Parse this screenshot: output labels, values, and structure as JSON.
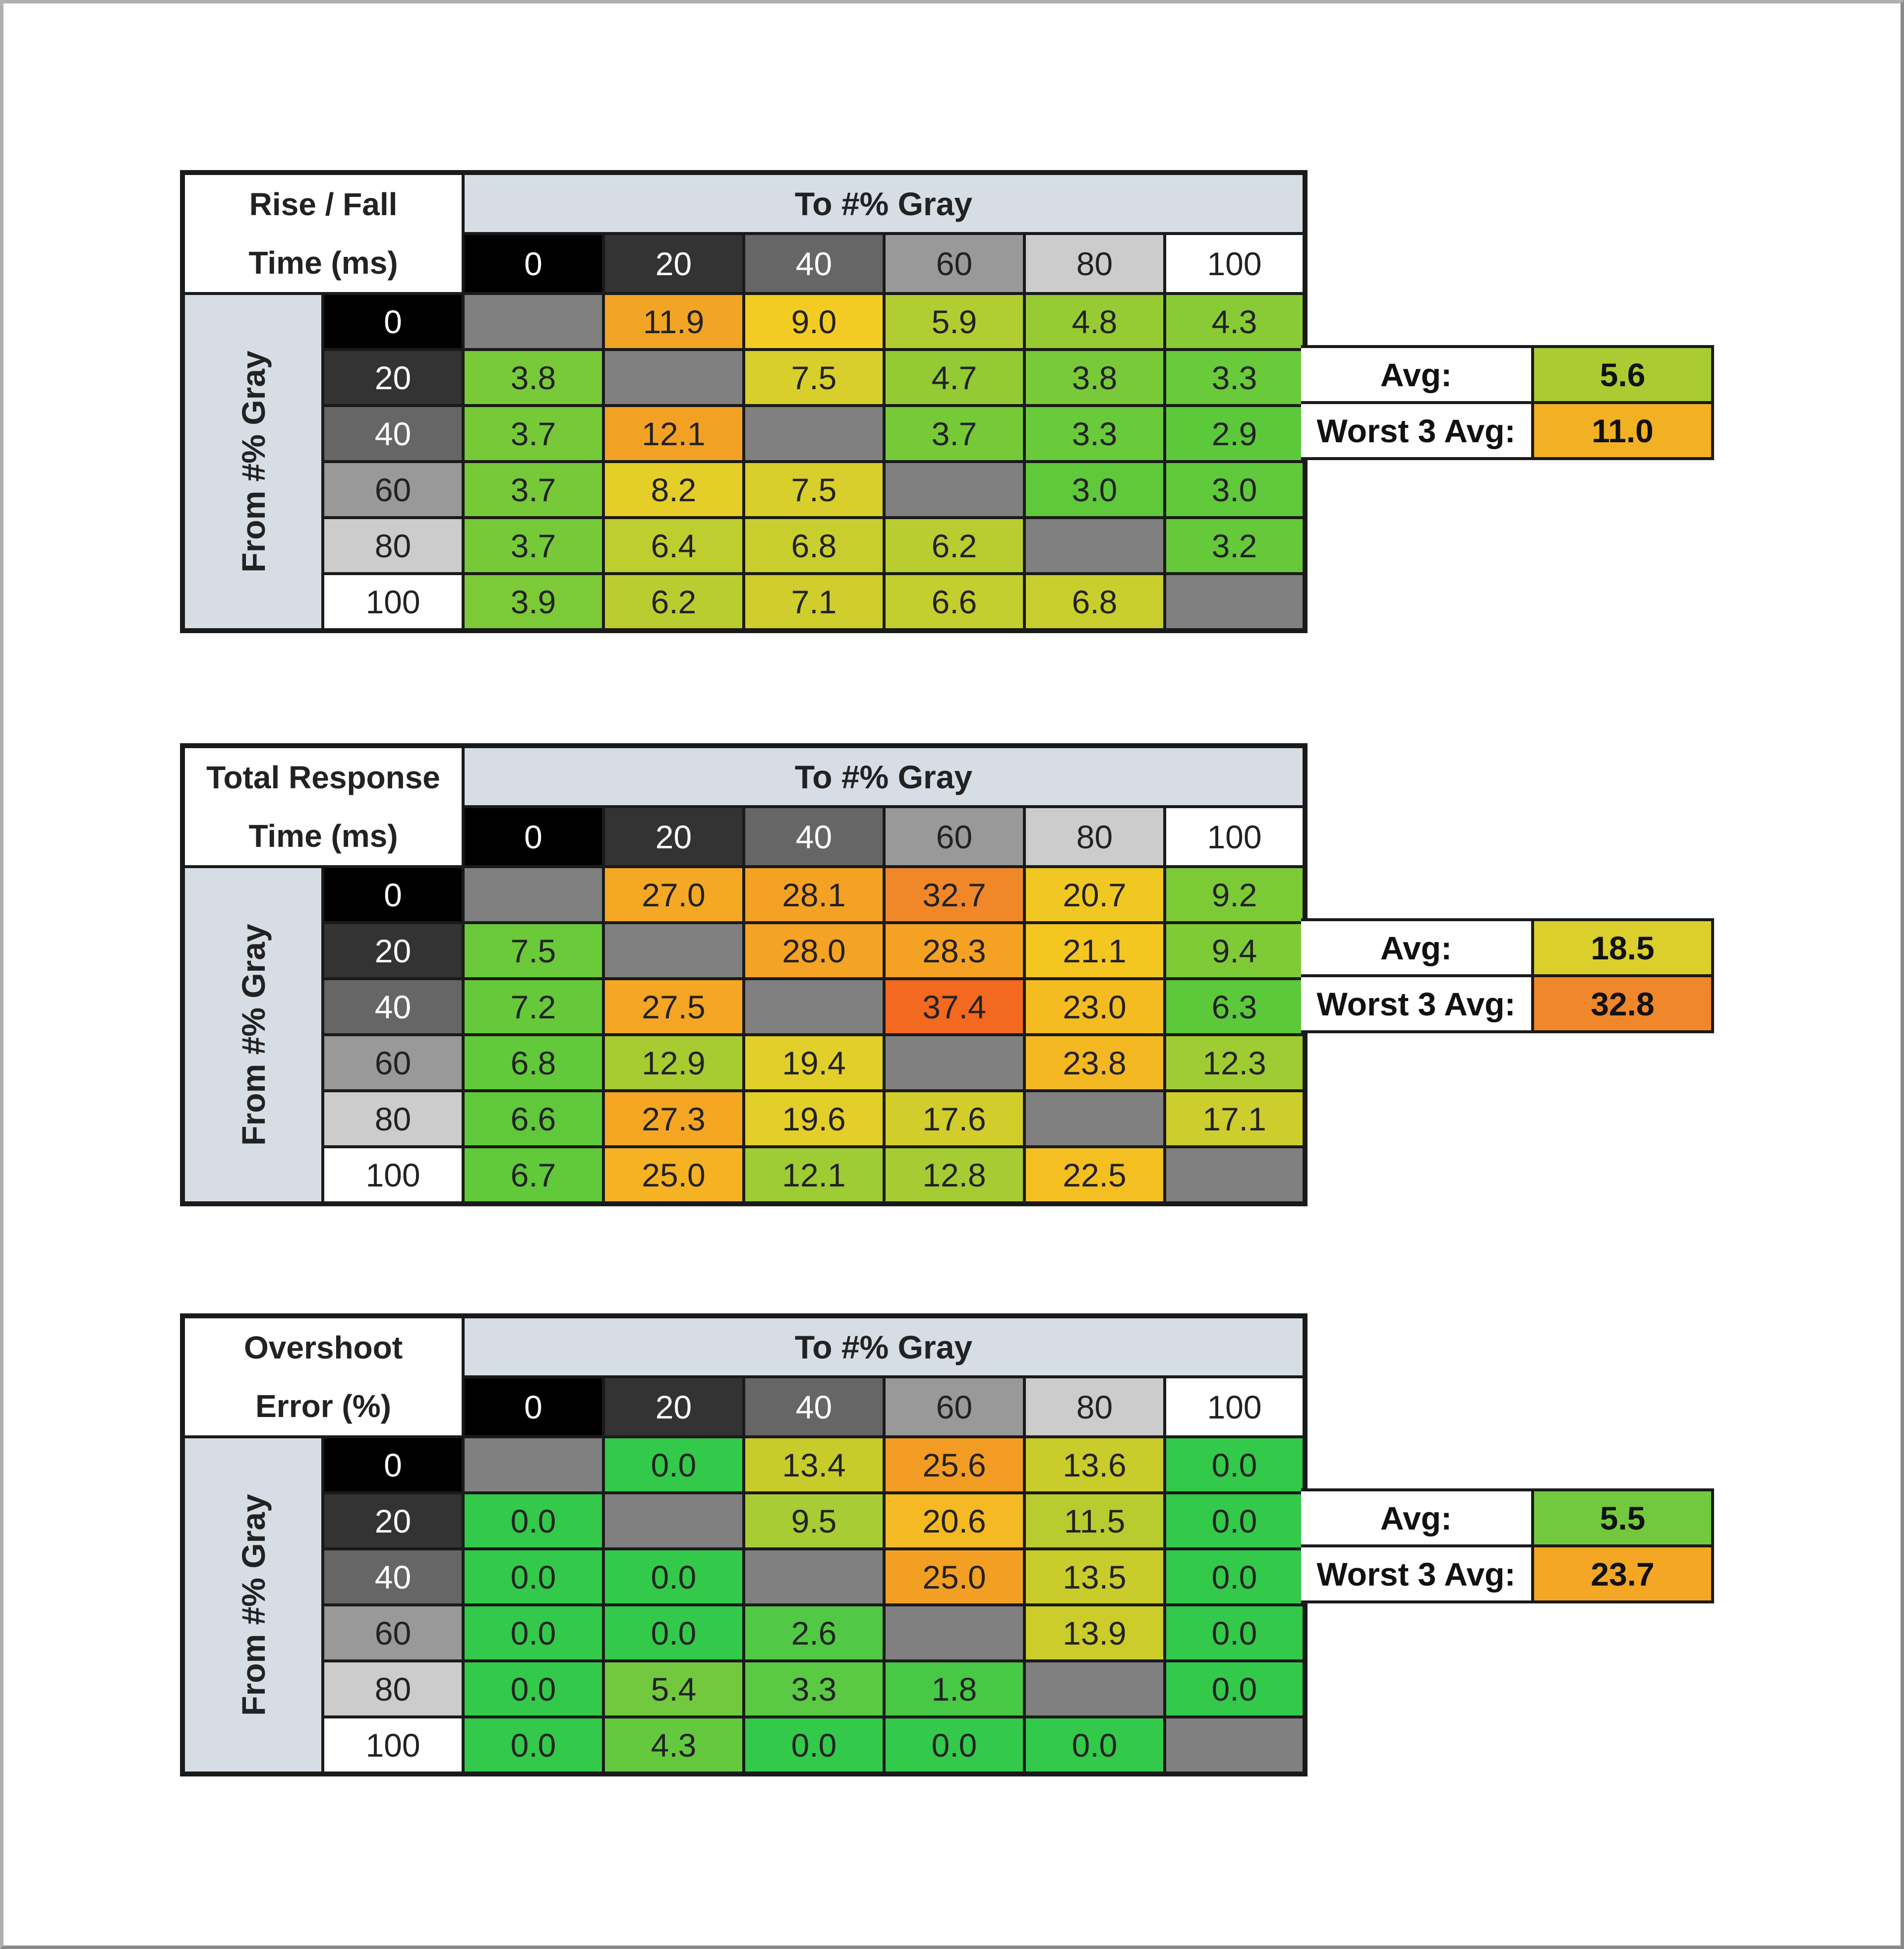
{
  "tables": [
    {
      "label_lines": [
        "Rise / Fall",
        "Time (ms)"
      ],
      "col_header": "To #% Gray",
      "row_header": "From #% Gray",
      "levels": [
        "0",
        "20",
        "40",
        "60",
        "80",
        "100"
      ],
      "cells": [
        [
          null,
          "11.9",
          "9.0",
          "5.9",
          "4.8",
          "4.3"
        ],
        [
          "3.8",
          null,
          "7.5",
          "4.7",
          "3.8",
          "3.3"
        ],
        [
          "3.7",
          "12.1",
          null,
          "3.7",
          "3.3",
          "2.9"
        ],
        [
          "3.7",
          "8.2",
          "7.5",
          null,
          "3.0",
          "3.0"
        ],
        [
          "3.7",
          "6.4",
          "6.8",
          "6.2",
          null,
          "3.2"
        ],
        [
          "3.9",
          "6.2",
          "7.1",
          "6.6",
          "6.8",
          null
        ]
      ],
      "avg_label": "Avg:",
      "avg": "5.6",
      "worst_label": "Worst 3 Avg:",
      "worst": "11.0",
      "color_scale": [
        [
          2.9,
          "#5cc93b"
        ],
        [
          4.5,
          "#8fcb35"
        ],
        [
          7.5,
          "#d9cf2c"
        ],
        [
          9.0,
          "#f2cc22"
        ],
        [
          12.1,
          "#f2a124"
        ]
      ]
    },
    {
      "label_lines": [
        "Total Response",
        "Time (ms)"
      ],
      "col_header": "To #% Gray",
      "row_header": "From #% Gray",
      "levels": [
        "0",
        "20",
        "40",
        "60",
        "80",
        "100"
      ],
      "cells": [
        [
          null,
          "27.0",
          "28.1",
          "32.7",
          "20.7",
          "9.2"
        ],
        [
          "7.5",
          null,
          "28.0",
          "28.3",
          "21.1",
          "9.4"
        ],
        [
          "7.2",
          "27.5",
          null,
          "37.4",
          "23.0",
          "6.3"
        ],
        [
          "6.8",
          "12.9",
          "19.4",
          null,
          "23.8",
          "12.3"
        ],
        [
          "6.6",
          "27.3",
          "19.6",
          "17.6",
          null,
          "17.1"
        ],
        [
          "6.7",
          "25.0",
          "12.1",
          "12.8",
          "22.5",
          null
        ]
      ],
      "avg_label": "Avg:",
      "avg": "18.5",
      "worst_label": "Worst 3 Avg:",
      "worst": "32.8",
      "color_scale": [
        [
          6.3,
          "#5cc93b"
        ],
        [
          12.3,
          "#a0cc33"
        ],
        [
          19.4,
          "#e2cf2a"
        ],
        [
          21.0,
          "#f4c620"
        ],
        [
          28.0,
          "#f5a324"
        ],
        [
          33.0,
          "#f0862a"
        ],
        [
          37.4,
          "#f2691f"
        ]
      ]
    },
    {
      "label_lines": [
        "Overshoot",
        "Error (%)"
      ],
      "col_header": "To #% Gray",
      "row_header": "From #% Gray",
      "levels": [
        "0",
        "20",
        "40",
        "60",
        "80",
        "100"
      ],
      "cells": [
        [
          null,
          "0.0",
          "13.4",
          "25.6",
          "13.6",
          "0.0"
        ],
        [
          "0.0",
          null,
          "9.5",
          "20.6",
          "11.5",
          "0.0"
        ],
        [
          "0.0",
          "0.0",
          null,
          "25.0",
          "13.5",
          "0.0"
        ],
        [
          "0.0",
          "0.0",
          "2.6",
          null,
          "13.9",
          "0.0"
        ],
        [
          "0.0",
          "5.4",
          "3.3",
          "1.8",
          null,
          "0.0"
        ],
        [
          "0.0",
          "4.3",
          "0.0",
          "0.0",
          "0.0",
          null
        ]
      ],
      "avg_label": "Avg:",
      "avg": "5.5",
      "worst_label": "Worst 3 Avg:",
      "worst": "23.7",
      "color_scale": [
        [
          0,
          "#33c94a"
        ],
        [
          5.4,
          "#72c93e"
        ],
        [
          9.5,
          "#a8cc33"
        ],
        [
          13.9,
          "#cccc2a"
        ],
        [
          20.6,
          "#f4b923"
        ],
        [
          25.6,
          "#f39c24"
        ]
      ]
    }
  ],
  "level_colors": [
    "#000000",
    "#333333",
    "#666666",
    "#999999",
    "#cccccc",
    "#ffffff"
  ],
  "level_text_colors": [
    "#ffffff",
    "#ffffff",
    "#ffffff",
    "#222222",
    "#222222",
    "#222222"
  ],
  "empty_color": "#808080"
}
